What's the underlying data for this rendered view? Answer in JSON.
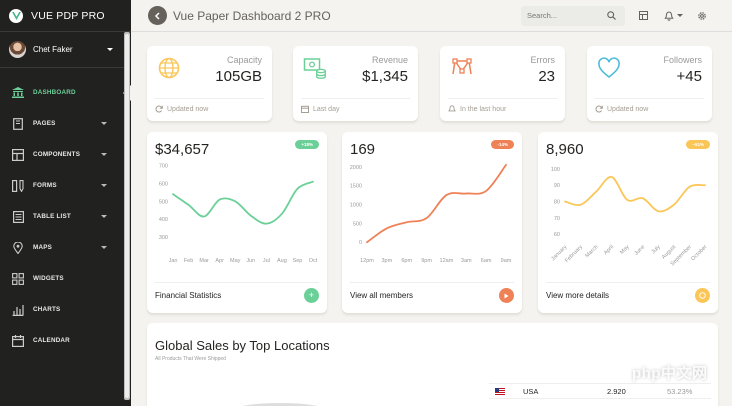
{
  "sidebar": {
    "brand": "VUE PDP PRO",
    "user": "Chet Faker",
    "items": [
      {
        "label": "DASHBOARD",
        "icon": "bank-icon"
      },
      {
        "label": "PAGES",
        "icon": "book-icon"
      },
      {
        "label": "COMPONENTS",
        "icon": "layout-icon"
      },
      {
        "label": "FORMS",
        "icon": "ruler-pencil-icon"
      },
      {
        "label": "TABLE LIST",
        "icon": "table-icon"
      },
      {
        "label": "MAPS",
        "icon": "map-pin-icon"
      },
      {
        "label": "WIDGETS",
        "icon": "widgets-icon"
      },
      {
        "label": "CHARTS",
        "icon": "bar-chart-icon"
      },
      {
        "label": "CALENDAR",
        "icon": "calendar-icon"
      }
    ]
  },
  "navbar": {
    "title": "Vue Paper Dashboard 2 PRO",
    "search_placeholder": "Search..."
  },
  "stats": [
    {
      "label": "Capacity",
      "value": "105GB",
      "footer": "Updated now",
      "icon": "globe-icon",
      "color": "#fbc658"
    },
    {
      "label": "Revenue",
      "value": "$1,345",
      "footer": "Last day",
      "icon": "money-icon",
      "color": "#6bd098"
    },
    {
      "label": "Errors",
      "value": "23",
      "footer": "In the last hour",
      "icon": "vector-icon",
      "color": "#ef8157"
    },
    {
      "label": "Followers",
      "value": "+45",
      "footer": "Updated now",
      "icon": "heart-icon",
      "color": "#51bcda"
    }
  ],
  "charts": {
    "financial": {
      "value": "$34,657",
      "badge": "+18%",
      "footer": "Financial Statistics"
    },
    "members": {
      "value": "169",
      "badge": "-14%",
      "footer": "View all members"
    },
    "details": {
      "value": "8,960",
      "badge": "~51%",
      "footer": "View more details"
    }
  },
  "chart_data": [
    {
      "type": "line",
      "color": "#6bd098",
      "categories": [
        "Jan",
        "Feb",
        "Mar",
        "Apr",
        "May",
        "Jun",
        "Jul",
        "Aug",
        "Sep",
        "Oct"
      ],
      "values": [
        540,
        480,
        415,
        510,
        500,
        420,
        375,
        430,
        570,
        610
      ],
      "yticks": [
        700,
        600,
        500,
        400,
        300
      ],
      "ylim": [
        250,
        720
      ]
    },
    {
      "type": "line",
      "color": "#ef8157",
      "categories": [
        "12pm",
        "3pm",
        "6pm",
        "9pm",
        "12am",
        "3am",
        "6am",
        "9am"
      ],
      "values": [
        0,
        370,
        530,
        640,
        1250,
        1290,
        1360,
        2050
      ],
      "yticks": [
        2000,
        1500,
        1000,
        500,
        0
      ],
      "ylim": [
        -100,
        2100
      ]
    },
    {
      "type": "line",
      "color": "#fbc658",
      "categories": [
        "January",
        "February",
        "March",
        "April",
        "May",
        "June",
        "July",
        "August",
        "September",
        "October"
      ],
      "values": [
        80,
        78,
        86,
        95,
        81,
        82,
        74,
        78,
        89,
        90
      ],
      "yticks": [
        100,
        90,
        80,
        70,
        60
      ],
      "ylim": [
        57,
        103
      ]
    }
  ],
  "sales": {
    "title": "Global Sales by Top Locations",
    "subtitle": "All Products That Were Shipped",
    "rows": [
      {
        "country": "USA",
        "value": "2.920",
        "pct": "53.23%"
      }
    ]
  },
  "watermark": "php中文网"
}
